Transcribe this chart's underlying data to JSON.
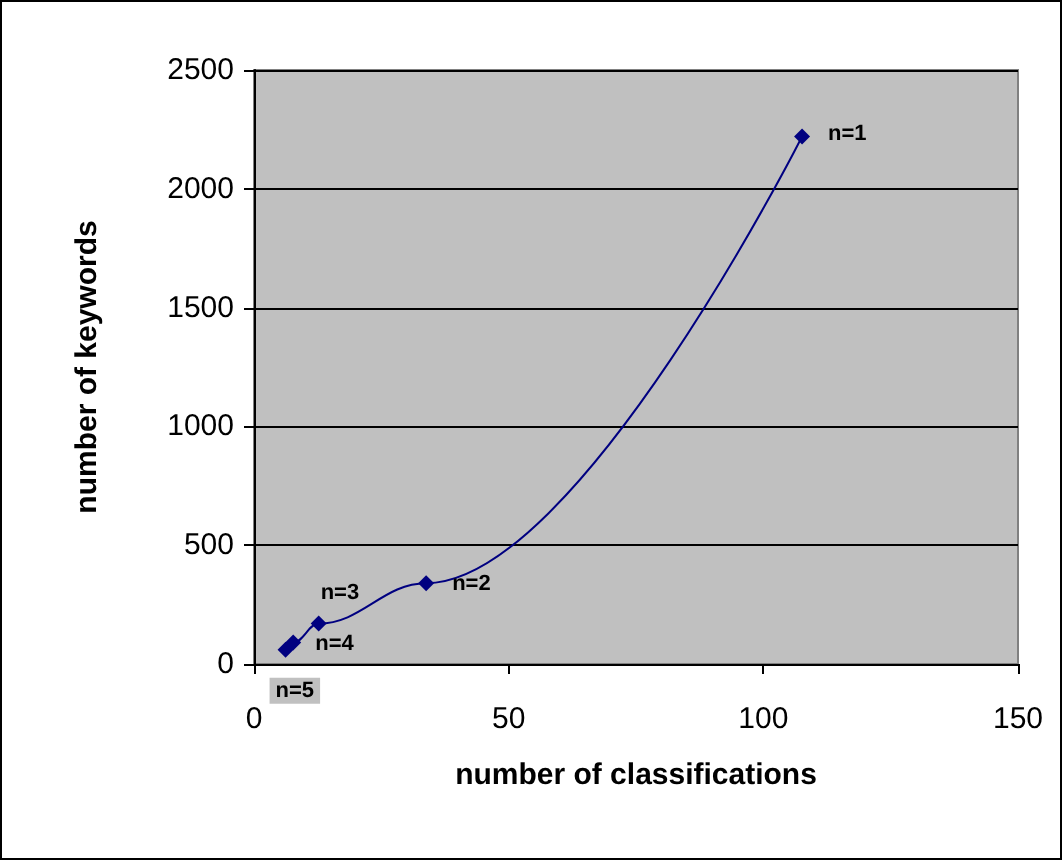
{
  "chart_data": {
    "type": "line",
    "xlabel": "number of classifications",
    "ylabel": "number of keywords",
    "x": [
      107.6,
      33.8,
      12.7,
      7.7,
      6.2
    ],
    "series": [
      {
        "color": "#000080",
        "values": [
          2220,
          340,
          170,
          90,
          60
        ]
      }
    ],
    "xlim": [
      0,
      150
    ],
    "xticks": [
      0,
      50,
      100,
      150
    ],
    "ylim": [
      0,
      2500
    ],
    "yticks": [
      0,
      500,
      1000,
      1500,
      2000,
      2500
    ],
    "grid": "y",
    "marker": "diamond",
    "line_style": "solid",
    "annotations": [
      {
        "text": "n=1",
        "x": 107.6,
        "y": 2220
      },
      {
        "text": "n=2",
        "x": 33.8,
        "y": 340
      },
      {
        "text": "n=3",
        "x": 12.7,
        "y": 170
      },
      {
        "text": "n=4",
        "x": 7.7,
        "y": 90
      },
      {
        "text": "n=5",
        "x": 6.2,
        "y": 60
      }
    ]
  }
}
